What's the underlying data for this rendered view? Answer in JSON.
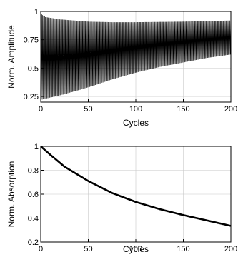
{
  "chart_data": [
    {
      "type": "line",
      "title": "",
      "xlabel": "Cycles",
      "ylabel": "Norm. Amplitude",
      "xlim": [
        0,
        200
      ],
      "ylim": [
        0.2,
        1.0
      ],
      "xticks": [
        "0",
        "50",
        "100",
        "150",
        "200"
      ],
      "yticks": [
        "0.25",
        "0.5",
        "0.75",
        "1"
      ],
      "grid": true,
      "series": [
        {
          "cycles": 200,
          "upper_envelope": {
            "x": [
              0,
              5,
              20,
              50,
              75,
              100,
              150,
              200
            ],
            "y": [
              0.98,
              0.95,
              0.93,
              0.91,
              0.905,
              0.905,
              0.91,
              0.92
            ]
          },
          "lower_envelope": {
            "x": [
              0,
              25,
              50,
              75,
              100,
              125,
              150,
              175,
              200
            ],
            "y": [
              0.22,
              0.27,
              0.33,
              0.4,
              0.46,
              0.51,
              0.55,
              0.59,
              0.62
            ]
          }
        }
      ]
    },
    {
      "type": "line",
      "title": "",
      "xlabel": "Cycles",
      "ylabel": "Norm. Absorption",
      "xlim": [
        0,
        200
      ],
      "ylim": [
        0.2,
        1.0
      ],
      "xticks": [
        "0",
        "50",
        "100",
        "150",
        "200"
      ],
      "yticks": [
        "0.2",
        "0.4",
        "0.6",
        "0.8",
        "1"
      ],
      "grid": true,
      "series": [
        {
          "x": [
            0,
            10,
            25,
            50,
            75,
            100,
            125,
            150,
            175,
            200
          ],
          "y": [
            1.0,
            0.93,
            0.83,
            0.71,
            0.61,
            0.535,
            0.475,
            0.425,
            0.38,
            0.335
          ]
        }
      ]
    }
  ]
}
